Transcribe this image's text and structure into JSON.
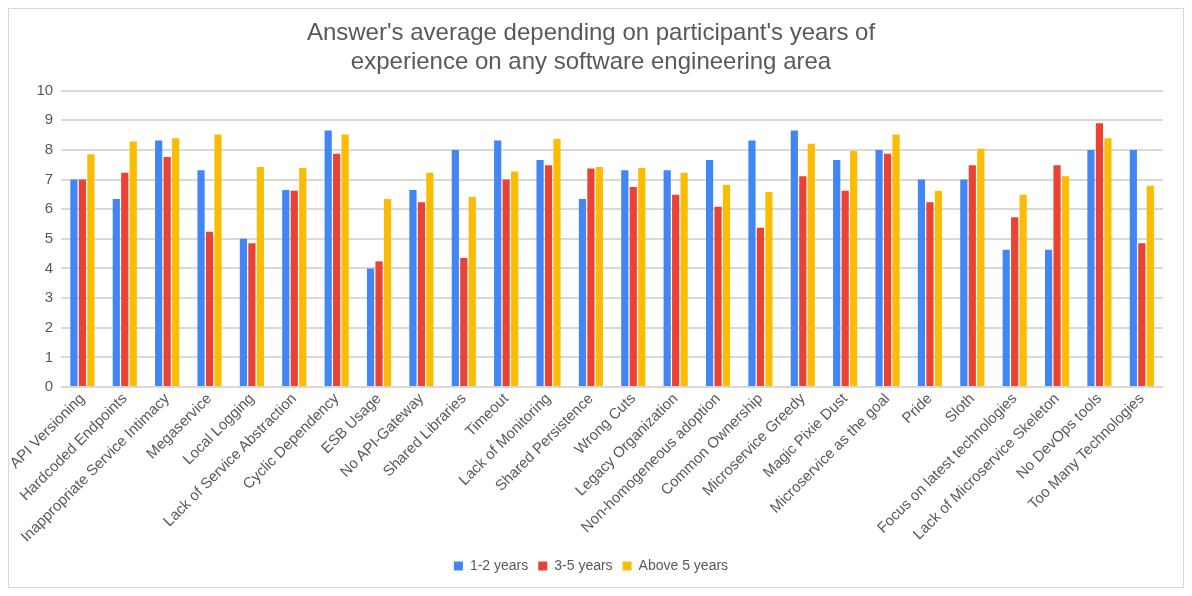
{
  "chart_data": {
    "type": "bar",
    "title": "Answer's average depending on participant's years of experience on any software engineering area",
    "categories": [
      "API Versioning",
      "Hardcoded Endpoints",
      "Inappropriate Service Intimacy",
      "Megaservice",
      "Local Logging",
      "Lack of Service Abstraction",
      "Cyclic Dependency",
      "ESB Usage",
      "No API-Gateway",
      "Shared Libraries",
      "Timeout",
      "Lack of Monitoring",
      "Shared Persistence",
      "Wrong Cuts",
      "Legacy Organization",
      "Non-homogeneous adoption",
      "Common Ownership",
      "Microservice Greedy",
      "Magic Pixie Dust",
      "Microservice as the goal",
      "Pride",
      "Sloth",
      "Focus on latest technologies",
      "Lack of Microservice Skeleton",
      "No DevOps tools",
      "Too Many Technologies"
    ],
    "series": [
      {
        "name": "1-2 years",
        "color": "#4285f4",
        "values": [
          7.0,
          6.34,
          8.32,
          7.31,
          5.0,
          6.65,
          8.65,
          4.0,
          6.65,
          8.0,
          8.32,
          7.66,
          6.34,
          7.31,
          7.31,
          7.66,
          8.32,
          8.65,
          7.66,
          8.0,
          7.0,
          7.0,
          4.63,
          4.63,
          8.0,
          8.0
        ]
      },
      {
        "name": "3-5 years",
        "color": "#ea4335",
        "values": [
          7.0,
          7.23,
          7.76,
          5.24,
          4.85,
          6.62,
          7.87,
          4.24,
          6.23,
          4.35,
          7.0,
          7.48,
          7.37,
          6.75,
          6.49,
          6.08,
          5.37,
          7.11,
          6.62,
          7.87,
          6.23,
          7.48,
          5.73,
          7.48,
          8.9,
          4.85
        ]
      },
      {
        "name": "Above 5 years",
        "color": "#fbbc04",
        "values": [
          7.85,
          8.28,
          8.39,
          8.52,
          7.42,
          7.39,
          8.52,
          6.34,
          7.23,
          6.41,
          7.27,
          8.37,
          7.42,
          7.39,
          7.23,
          6.82,
          6.58,
          8.21,
          7.96,
          8.52,
          6.62,
          8.04,
          6.49,
          7.11,
          8.39,
          6.79
        ]
      }
    ],
    "ylim": [
      0,
      10
    ],
    "yticks": [
      0,
      1,
      2,
      3,
      4,
      5,
      6,
      7,
      8,
      9,
      10
    ],
    "grid": "y",
    "legend": "bottom"
  }
}
